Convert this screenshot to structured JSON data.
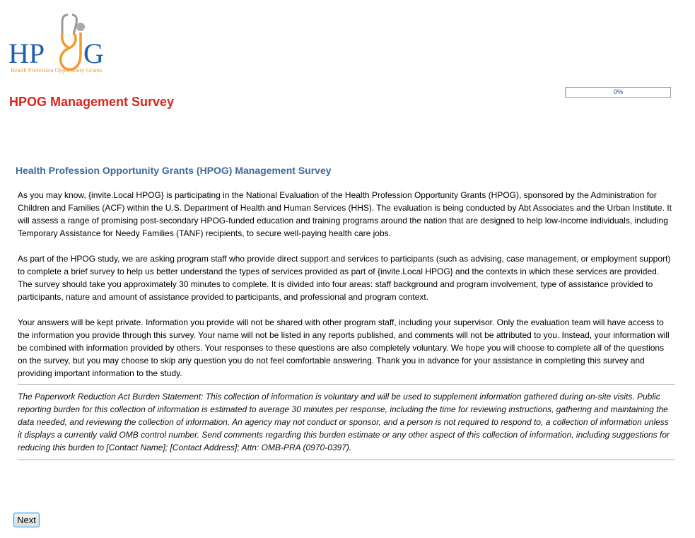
{
  "logo": {
    "text": "HPOG",
    "tagline": "Health Profession Opportunity Grants"
  },
  "header": {
    "title": "HPOG Management Survey"
  },
  "progress": {
    "value": 0,
    "label": "0%"
  },
  "main": {
    "heading": "Health Profession Opportunity Grants (HPOG) Management Survey",
    "paragraphs": [
      "As you may know, {invite.Local HPOG} is participating in the National Evaluation of the Health Profession Opportunity Grants (HPOG), sponsored by the Administration for Children and Families (ACF) within the U.S. Department of Health and Human Services (HHS). The evaluation is being conducted by Abt Associates and the Urban Institute. It will assess a range of promising post-secondary HPOG-funded education and training programs around the nation that are designed to help low-income individuals, including Temporary Assistance for Needy Families (TANF) recipients, to secure well-paying health care jobs.",
      "As part of the HPOG study, we are asking program staff who provide direct support and services to participants (such as advising, case management, or employment support) to complete a brief survey to help us better understand the types of services provided as part of {invite.Local HPOG} and the contexts in which these services are provided. The survey should take you approximately 30 minutes to complete. It is divided into four areas: staff background and program involvement, type of assistance provided to participants, nature and amount of assistance provided to participants, and professional and program context.",
      "Your answers will be kept private. Information you provide will not be shared with other program staff, including your supervisor. Only the evaluation team will have access to the information you provide through this survey. Your name will not be listed in any reports published, and comments will not be attributed to you. Instead, your information will be combined with information provided by others. Your responses to these questions are also completely voluntary. We hope you will choose to complete all of the questions on the survey, but you may choose to skip any question you do not feel comfortable answering. Thank you in advance for your assistance in completing this survey and providing important information to the study."
    ],
    "pra_statement": "The Paperwork Reduction Act Burden Statement: This collection of information is voluntary and will be used to supplement information gathered during on-site visits. Public reporting burden for this collection of information is estimated to average 30 minutes per response, including the time for reviewing instructions, gathering and maintaining the data needed, and reviewing the collection of information. An agency may not conduct or sponsor, and a person is not required to respond to, a collection of information unless it displays a currently valid OMB control number. Send comments regarding this burden estimate or any other aspect of this collection of information, including suggestions for reducing this burden to [Contact Name]; [Contact Address]; Attn: OMB-PRA (0970-0397)."
  },
  "footer": {
    "next_label": "Next"
  },
  "colors": {
    "title": "#d8261c",
    "heading": "#3f6a9a",
    "logo_blue": "#1f5fa8",
    "logo_orange": "#f39a2b"
  }
}
